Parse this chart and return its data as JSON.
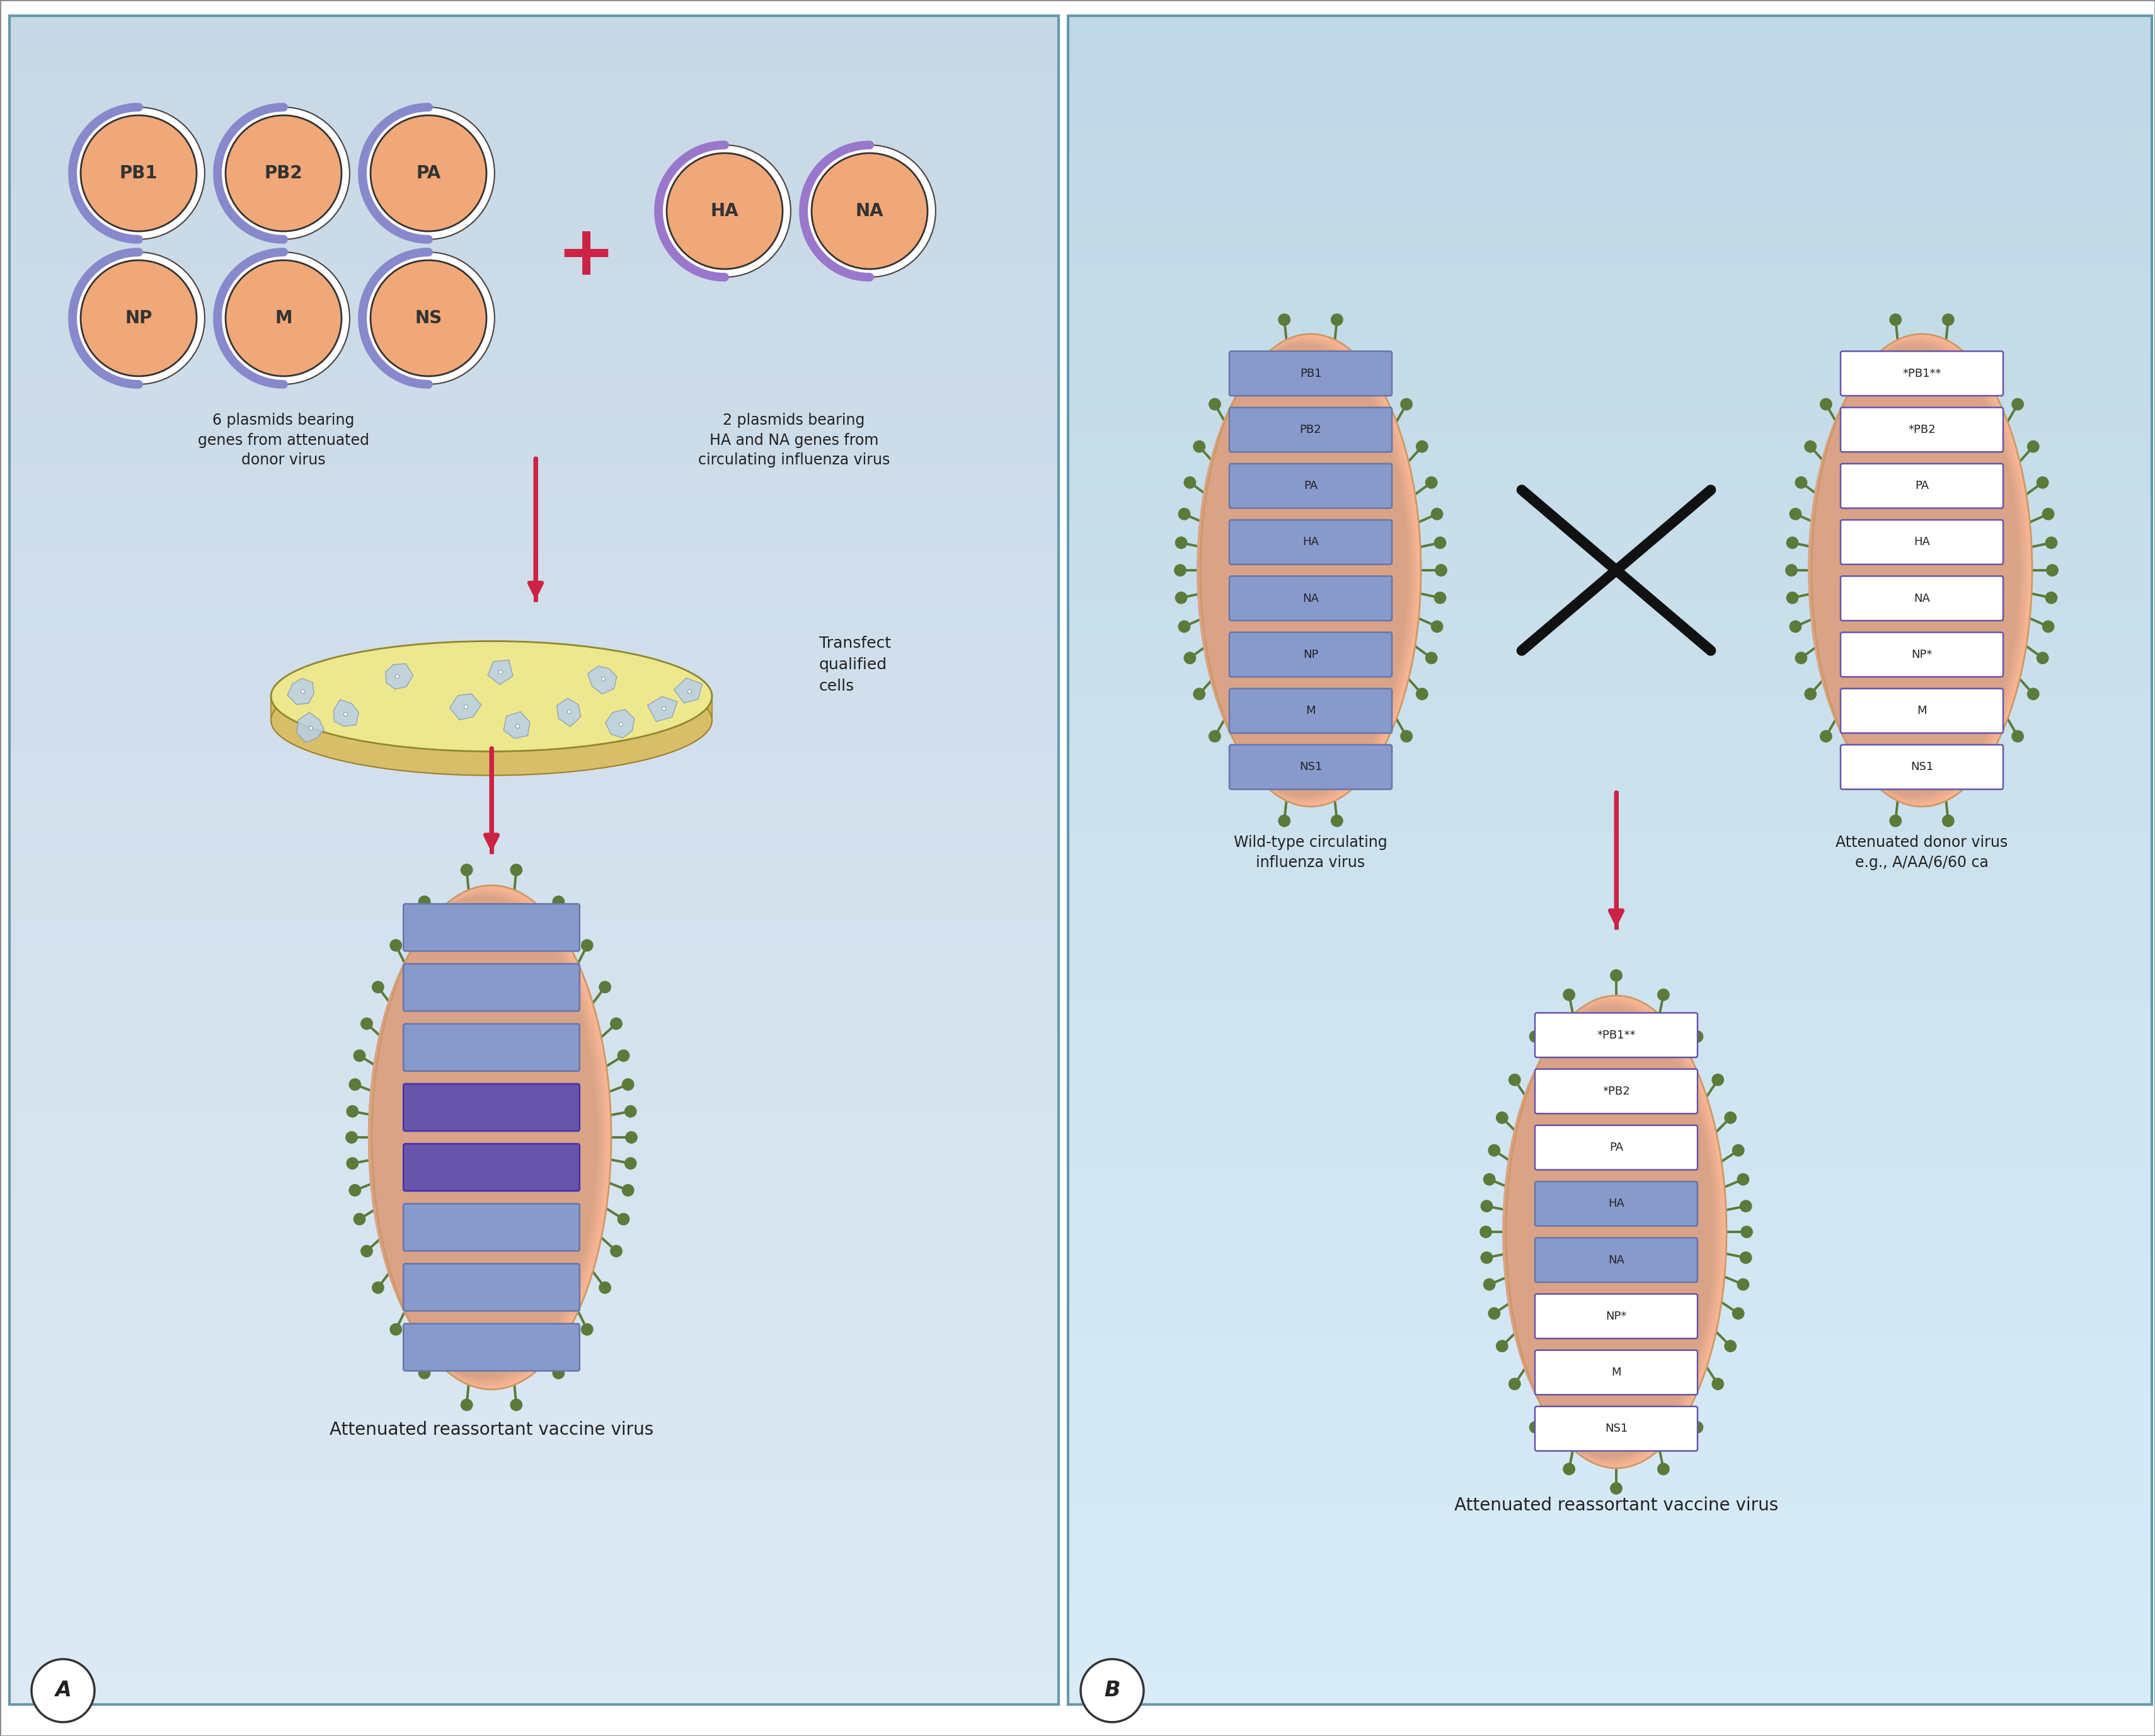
{
  "bg_gradient_top": "#b0c8d8",
  "bg_gradient_bottom": "#d0e4ee",
  "panel_border": "#6699aa",
  "plasmid_fill": "#f0a878",
  "plasmid_outer_ring": "#555555",
  "plasmid_inner_ring": "#222222",
  "plasmid_cap_blue": "#8888cc",
  "plasmid_cap_purple": "#9977cc",
  "arrow_color": "#cc2244",
  "plus_color": "#cc2244",
  "virus_fill_gradient_center": "#ffd0b0",
  "virus_fill_edge": "#f0a878",
  "spike_stem_color": "#5c7a3a",
  "spike_head_color": "#5c7a3a",
  "gene_blue_fill": "#8899cc",
  "gene_blue_edge": "#6677aa",
  "gene_purple_fill": "#6655aa",
  "gene_purple_edge": "#4433aa",
  "gene_white_fill": "#ffffff",
  "gene_white_edge": "#6655aa",
  "gene_text_dark": "#222222",
  "gene_text_white": "#ffffff",
  "petri_outer_fill": "#e8d888",
  "petri_rim_color": "#c8b060",
  "petri_inner_fill": "#f0e8a0",
  "cell_fill": "#b8d0e8",
  "cell_edge": "#8899bb",
  "label_6plasmids": "6 plasmids bearing\ngenes from attenuated\ndonor virus",
  "label_2plasmids": "2 plasmids bearing\nHA and NA genes from\ncirculating influenza virus",
  "label_transfect": "Transfect\nqualified\ncells",
  "label_vaccine_A": "Attenuated reassortant vaccine virus",
  "label_vaccine_B": "Attenuated reassortant vaccine virus",
  "label_wildtype": "Wild-type circulating\ninfluenza virus",
  "label_donor": "Attenuated donor virus\ne.g., A/AA/6/60 ca",
  "panel_A": "A",
  "panel_B": "B",
  "plasmids_6": [
    "PB1",
    "PB2",
    "PA",
    "NP",
    "M",
    "NS"
  ],
  "plasmids_2": [
    "HA",
    "NA"
  ],
  "genes_wt": [
    "PB1",
    "PB2",
    "PA",
    "HA",
    "NA",
    "NP",
    "M",
    "NS1"
  ],
  "genes_donor": [
    "*PB1**",
    "*PB2",
    "PA",
    "HA",
    "NA",
    "NP*",
    "M",
    "NS1"
  ],
  "genes_result_B": [
    "*PB1**",
    "*PB2",
    "PA",
    "HA",
    "NA",
    "NP*",
    "M",
    "NS1"
  ],
  "gcol_wt": [
    "blue",
    "blue",
    "blue",
    "blue",
    "blue",
    "blue",
    "blue",
    "blue"
  ],
  "gcol_donor": [
    "white",
    "white",
    "white",
    "white",
    "white",
    "white",
    "white",
    "white"
  ],
  "gcol_result_B": [
    "white",
    "white",
    "white",
    "blue",
    "blue",
    "white",
    "white",
    "white"
  ],
  "gcol_result_A_unlabeled": [
    "blue",
    "blue",
    "blue",
    "purple",
    "purple",
    "blue",
    "blue",
    "blue"
  ],
  "genes_result_A_unlabeled": [
    "",
    "",
    "",
    "",
    "",
    "",
    "",
    ""
  ]
}
